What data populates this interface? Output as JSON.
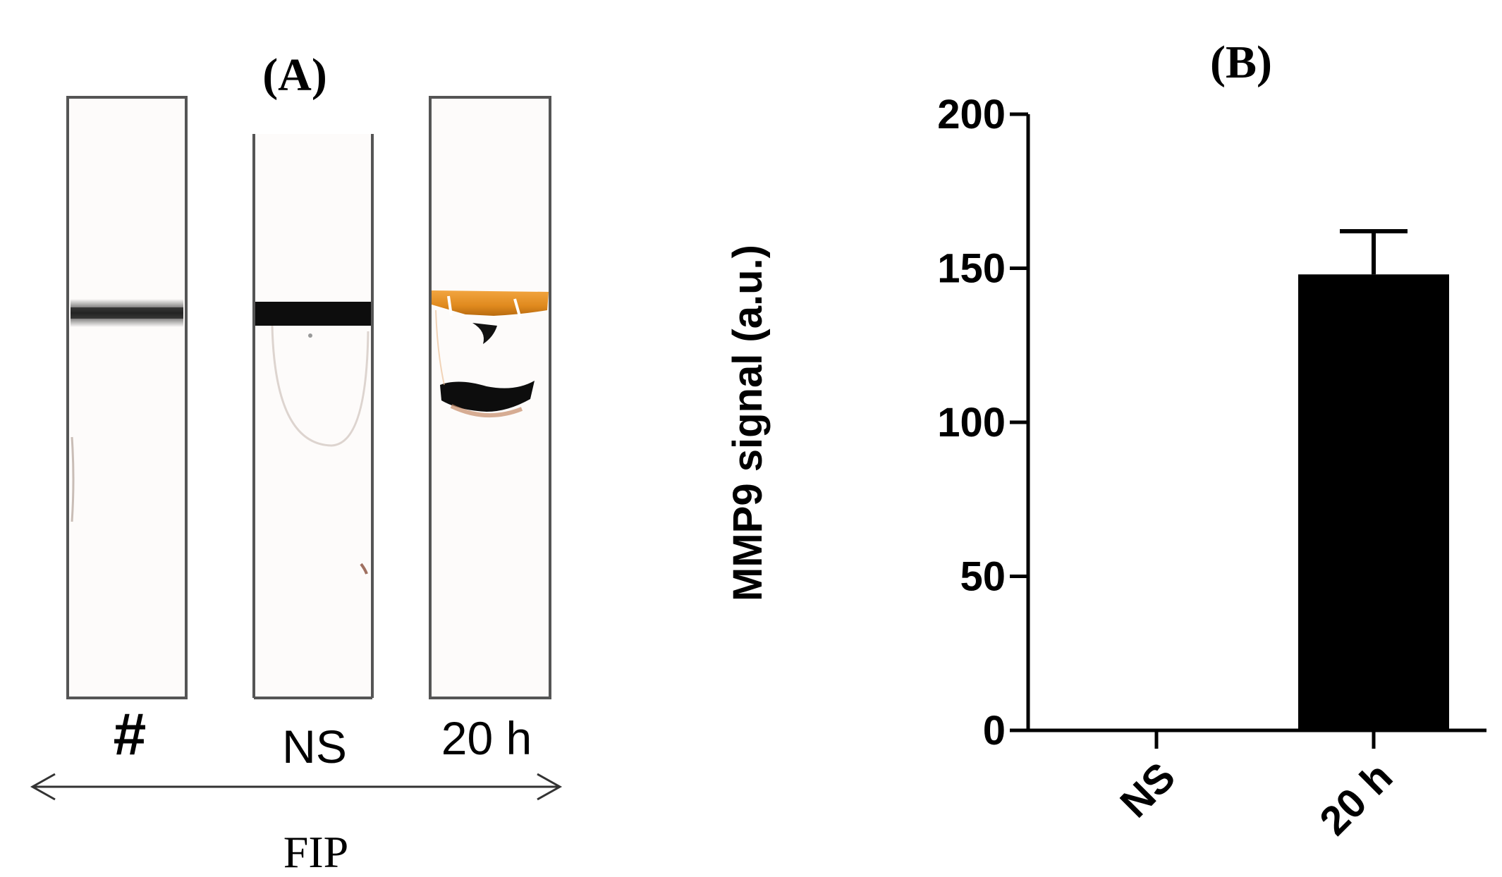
{
  "panel_a": {
    "label": "(A)",
    "lane_labels": [
      "#",
      "NS",
      "20 h"
    ],
    "arrow_label": "FIP"
  },
  "panel_b": {
    "label": "(B)"
  },
  "chart_data": {
    "type": "bar",
    "categories": [
      "NS",
      "20 h"
    ],
    "values": [
      0,
      148
    ],
    "error": [
      0,
      14
    ],
    "ylabel": "MMP9 signal (a.u.)",
    "ylim": [
      0,
      200
    ],
    "yticks": [
      0,
      50,
      100,
      150,
      200
    ],
    "grid": false,
    "bar_color": "#000000"
  }
}
